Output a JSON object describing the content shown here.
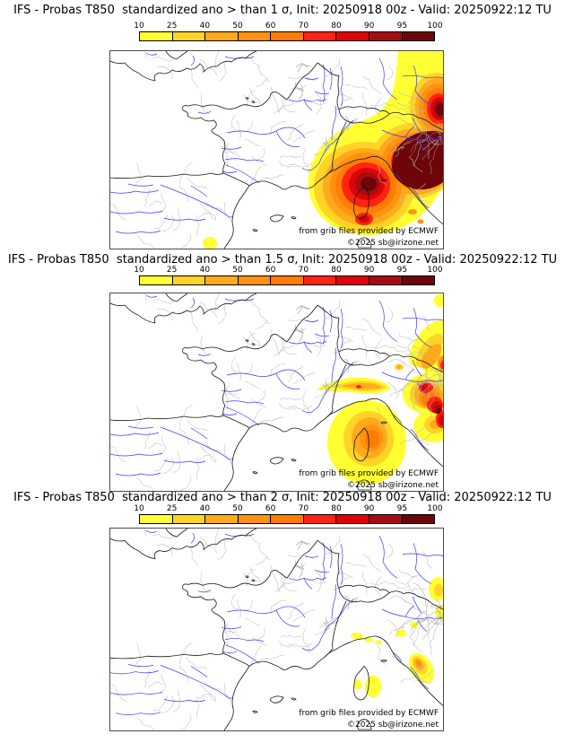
{
  "panels": [
    {
      "title": "IFS - Probas T850  standardized ano > than 1 σ, Init: 20250918 00z - Valid: 20250922:12 TU",
      "threshold_sigma": "1",
      "hotspots": [
        {
          "area": "Northwest Italy / Po valley",
          "max_percent": 100
        },
        {
          "area": "Corsica and Ligurian Sea",
          "max_percent": 100
        },
        {
          "area": "Northeast corner of domain",
          "max_percent": 100
        },
        {
          "area": "Eastern Spain (small spot)",
          "max_percent": 25
        }
      ]
    },
    {
      "title": "IFS - Probas T850  standardized ano > than 1.5 σ, Init: 20250918 00z - Valid: 20250922:12 TU",
      "threshold_sigma": "1.5",
      "hotspots": [
        {
          "area": "Northeast Italy / Adriatic coast",
          "max_percent": 100
        },
        {
          "area": "Corsica",
          "max_percent": 70
        },
        {
          "area": "Ligurian coast strip",
          "max_percent": 80
        },
        {
          "area": "Northeast corner of domain",
          "max_percent": 60
        }
      ]
    },
    {
      "title": "IFS - Probas T850  standardized ano > than 2 σ, Init: 20250918 00z - Valid: 20250922:12 TU",
      "threshold_sigma": "2",
      "hotspots": [
        {
          "area": "Central Italy",
          "max_percent": 60
        },
        {
          "area": "Corsica (small spots)",
          "max_percent": 25
        },
        {
          "area": "Liguria coast (small spots)",
          "max_percent": 25
        },
        {
          "area": "Northeast edge (small spots)",
          "max_percent": 40
        }
      ]
    }
  ],
  "colorbar": {
    "ticks": [
      "10",
      "25",
      "40",
      "50",
      "60",
      "70",
      "80",
      "90",
      "95",
      "100"
    ],
    "colors": [
      "#ffff33",
      "#ffd426",
      "#ffaa1c",
      "#ff9210",
      "#ff7c05",
      "#ff2313",
      "#df0407",
      "#a60d12",
      "#6d0509"
    ]
  },
  "credits": {
    "line1": "from grib files provided by ECMWF",
    "line2": "©2025 sb@irizone.net"
  }
}
